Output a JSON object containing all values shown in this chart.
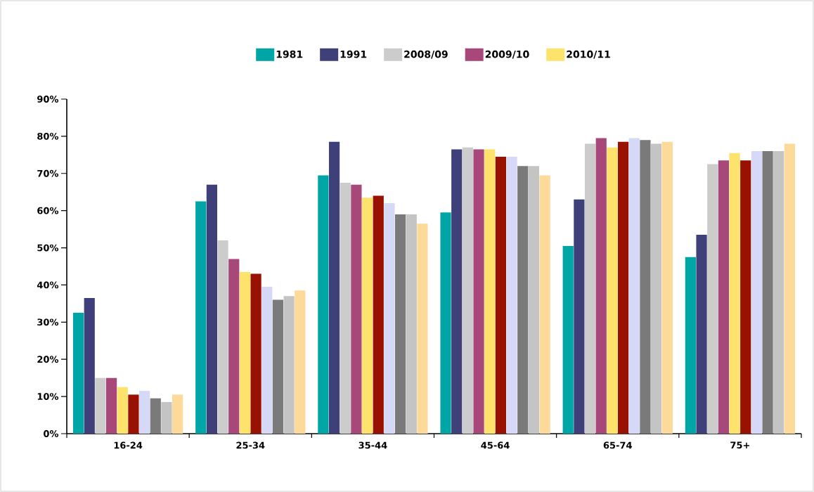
{
  "chart_data": {
    "type": "bar",
    "categories": [
      "16-24",
      "25-34",
      "35-44",
      "45-64",
      "65-74",
      "75+"
    ],
    "series": [
      {
        "name": "1981",
        "color": "#00a5a5",
        "values": [
          32.5,
          62.5,
          69.5,
          59.5,
          50.5,
          47.5
        ]
      },
      {
        "name": "1991",
        "color": "#3f4079",
        "values": [
          36.5,
          67,
          78.5,
          76.5,
          63,
          53.5
        ]
      },
      {
        "name": "2008/09",
        "color": "#cccccc",
        "values": [
          15,
          52,
          67.5,
          77,
          78,
          72.5
        ]
      },
      {
        "name": "2009/10",
        "color": "#a8477a",
        "values": [
          15,
          47,
          67,
          76.5,
          79.5,
          73.5
        ]
      },
      {
        "name": "2010/11",
        "color": "#fde26c",
        "values": [
          12.5,
          43.5,
          63.5,
          76.5,
          77,
          75.5
        ]
      },
      {
        "color": "#991100",
        "values": [
          10.5,
          43,
          64,
          74.5,
          78.5,
          73.5
        ]
      },
      {
        "color": "#d6d8f7",
        "values": [
          11.5,
          39.5,
          62,
          74.5,
          79.5,
          76
        ]
      },
      {
        "color": "#7a7a7a",
        "values": [
          9.5,
          36,
          59,
          72,
          79,
          76
        ]
      },
      {
        "color": "#c4c4c4",
        "values": [
          8.5,
          37,
          59,
          72,
          78,
          76
        ]
      },
      {
        "color": "#fdd99a",
        "values": [
          10.5,
          38.5,
          56.5,
          69.5,
          78.5,
          78
        ]
      }
    ],
    "ylim": [
      0,
      90
    ],
    "yticks": [
      {
        "value": 0,
        "label": "0%"
      },
      {
        "value": 10,
        "label": "10%"
      },
      {
        "value": 20,
        "label": "20%"
      },
      {
        "value": 30,
        "label": "30%"
      },
      {
        "value": 40,
        "label": "40%"
      },
      {
        "value": 50,
        "label": "50%"
      },
      {
        "value": 60,
        "label": "60%"
      },
      {
        "value": 70,
        "label": "70%"
      },
      {
        "value": 80,
        "label": "80%"
      },
      {
        "value": 90,
        "label": "90%"
      }
    ],
    "grid": false,
    "legend": "top"
  }
}
